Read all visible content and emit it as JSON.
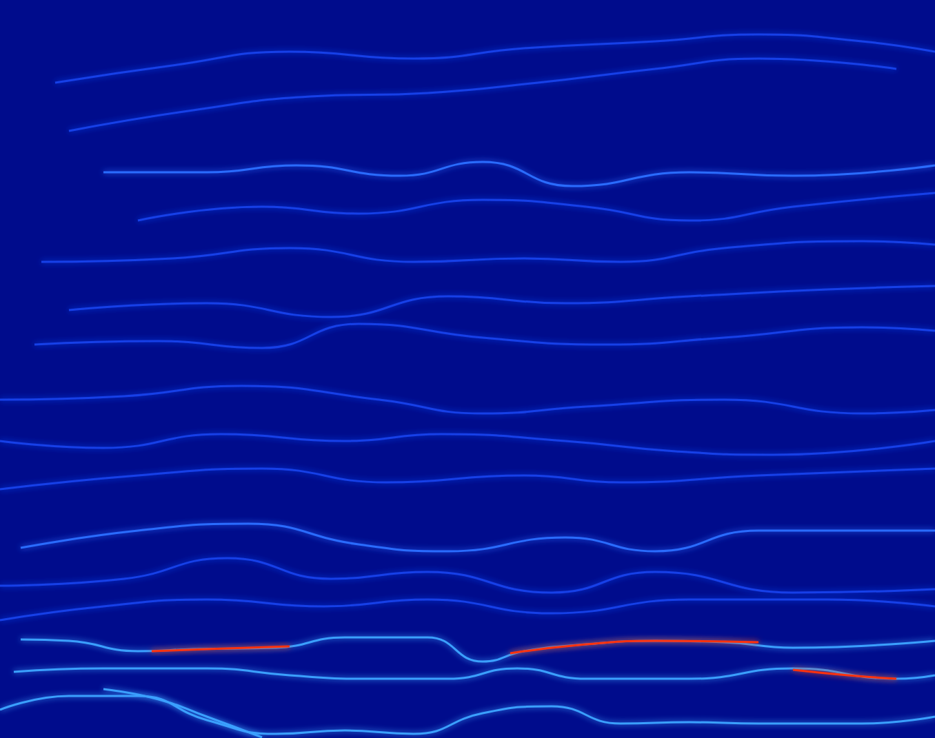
{
  "chart_data": {
    "type": "line",
    "xlim": [
      0,
      1356
    ],
    "ylim": [
      0,
      1071
    ],
    "tick_labels": false,
    "grid": false,
    "series": [
      {
        "color": "#1540e8",
        "x": [
          80,
          250,
          420,
          600,
          760,
          950,
          1100,
          1250,
          1356
        ],
        "values": [
          951,
          976,
          996,
          986,
          1001,
          1011,
          1021,
          1011,
          996
        ]
      },
      {
        "color": "#1540e8",
        "x": [
          100,
          280,
          450,
          620,
          780,
          950,
          1100,
          1300
        ],
        "values": [
          881,
          911,
          931,
          936,
          951,
          971,
          986,
          971
        ]
      },
      {
        "color": "#2a6cff",
        "x": [
          150,
          300,
          430,
          580,
          700,
          830,
          1000,
          1150,
          1356
        ],
        "values": [
          821,
          821,
          831,
          816,
          836,
          801,
          821,
          816,
          831
        ]
      },
      {
        "color": "#1540e8",
        "x": [
          200,
          380,
          520,
          700,
          850,
          1000,
          1150,
          1356
        ],
        "values": [
          751,
          771,
          761,
          781,
          771,
          751,
          771,
          791
        ]
      },
      {
        "color": "#1540e8",
        "x": [
          60,
          250,
          420,
          600,
          760,
          900,
          1050,
          1250,
          1356
        ],
        "values": [
          691,
          696,
          711,
          691,
          696,
          691,
          711,
          721,
          716
        ]
      },
      {
        "color": "#1540e8",
        "x": [
          100,
          300,
          480,
          650,
          820,
          1000,
          1200,
          1356
        ],
        "values": [
          621,
          631,
          611,
          641,
          631,
          641,
          651,
          656
        ]
      },
      {
        "color": "#1540e8",
        "x": [
          50,
          230,
          380,
          520,
          700,
          880,
          1050,
          1250,
          1356
        ],
        "values": [
          571,
          576,
          566,
          601,
          581,
          571,
          581,
          596,
          591
        ]
      },
      {
        "color": "#1540e8",
        "x": [
          0,
          180,
          350,
          550,
          700,
          850,
          1050,
          1250,
          1356
        ],
        "values": [
          491,
          496,
          511,
          491,
          471,
          481,
          491,
          471,
          476
        ]
      },
      {
        "color": "#1540e8",
        "x": [
          0,
          150,
          320,
          500,
          640,
          820,
          980,
          1120,
          1356
        ],
        "values": [
          431,
          421,
          441,
          431,
          441,
          431,
          416,
          411,
          431
        ]
      },
      {
        "color": "#1540e8",
        "x": [
          0,
          200,
          380,
          560,
          760,
          900,
          1100,
          1356
        ],
        "values": [
          361,
          381,
          391,
          371,
          381,
          371,
          381,
          391
        ]
      },
      {
        "color": "#2a6cff",
        "x": [
          30,
          200,
          360,
          520,
          650,
          820,
          950,
          1100,
          1356
        ],
        "values": [
          276,
          301,
          311,
          281,
          271,
          291,
          271,
          301,
          301
        ]
      },
      {
        "color": "#1540e8",
        "x": [
          0,
          180,
          330,
          480,
          620,
          800,
          950,
          1150,
          1356
        ],
        "values": [
          221,
          231,
          261,
          231,
          241,
          211,
          241,
          211,
          216
        ]
      },
      {
        "color": "#1540e8",
        "x": [
          0,
          150,
          300,
          470,
          620,
          800,
          1000,
          1200,
          1356
        ],
        "values": [
          171,
          191,
          201,
          191,
          201,
          181,
          201,
          201,
          191
        ]
      },
      {
        "color": "#3aa0ff",
        "x": [
          30,
          100,
          200,
          280,
          400,
          500,
          620,
          700,
          760,
          850,
          950,
          1050,
          1150,
          1356
        ],
        "values": [
          143,
          141,
          126,
          129,
          131,
          146,
          146,
          111,
          126,
          136,
          141,
          139,
          131,
          141
        ]
      },
      {
        "color": "#3aa0ff",
        "x": [
          20,
          150,
          300,
          420,
          520,
          650,
          750,
          850,
          1000,
          1150,
          1300,
          1356
        ],
        "values": [
          96,
          101,
          101,
          91,
          86,
          86,
          101,
          86,
          86,
          101,
          86,
          91
        ]
      },
      {
        "color": "#3aa0ff",
        "x": [
          0,
          100,
          200,
          300,
          400,
          500,
          600,
          700,
          800,
          900,
          1000,
          1100,
          1250,
          1356
        ],
        "values": [
          41,
          61,
          61,
          26,
          6,
          11,
          6,
          36,
          46,
          21,
          23,
          21,
          21,
          31
        ]
      },
      {
        "color": "#3aa0ff",
        "x": [
          150,
          230,
          300,
          380
        ],
        "values": [
          71,
          56,
          31,
          1
        ]
      },
      {
        "color": "#ff3010",
        "x": [
          220,
          300,
          420
        ],
        "values": [
          126,
          129,
          133
        ]
      },
      {
        "color": "#ff3010",
        "x": [
          740,
          850,
          950,
          1100
        ],
        "values": [
          123,
          136,
          141,
          139
        ]
      },
      {
        "color": "#ff3010",
        "x": [
          1150,
          1230,
          1300
        ],
        "values": [
          99,
          91,
          86
        ]
      }
    ]
  }
}
